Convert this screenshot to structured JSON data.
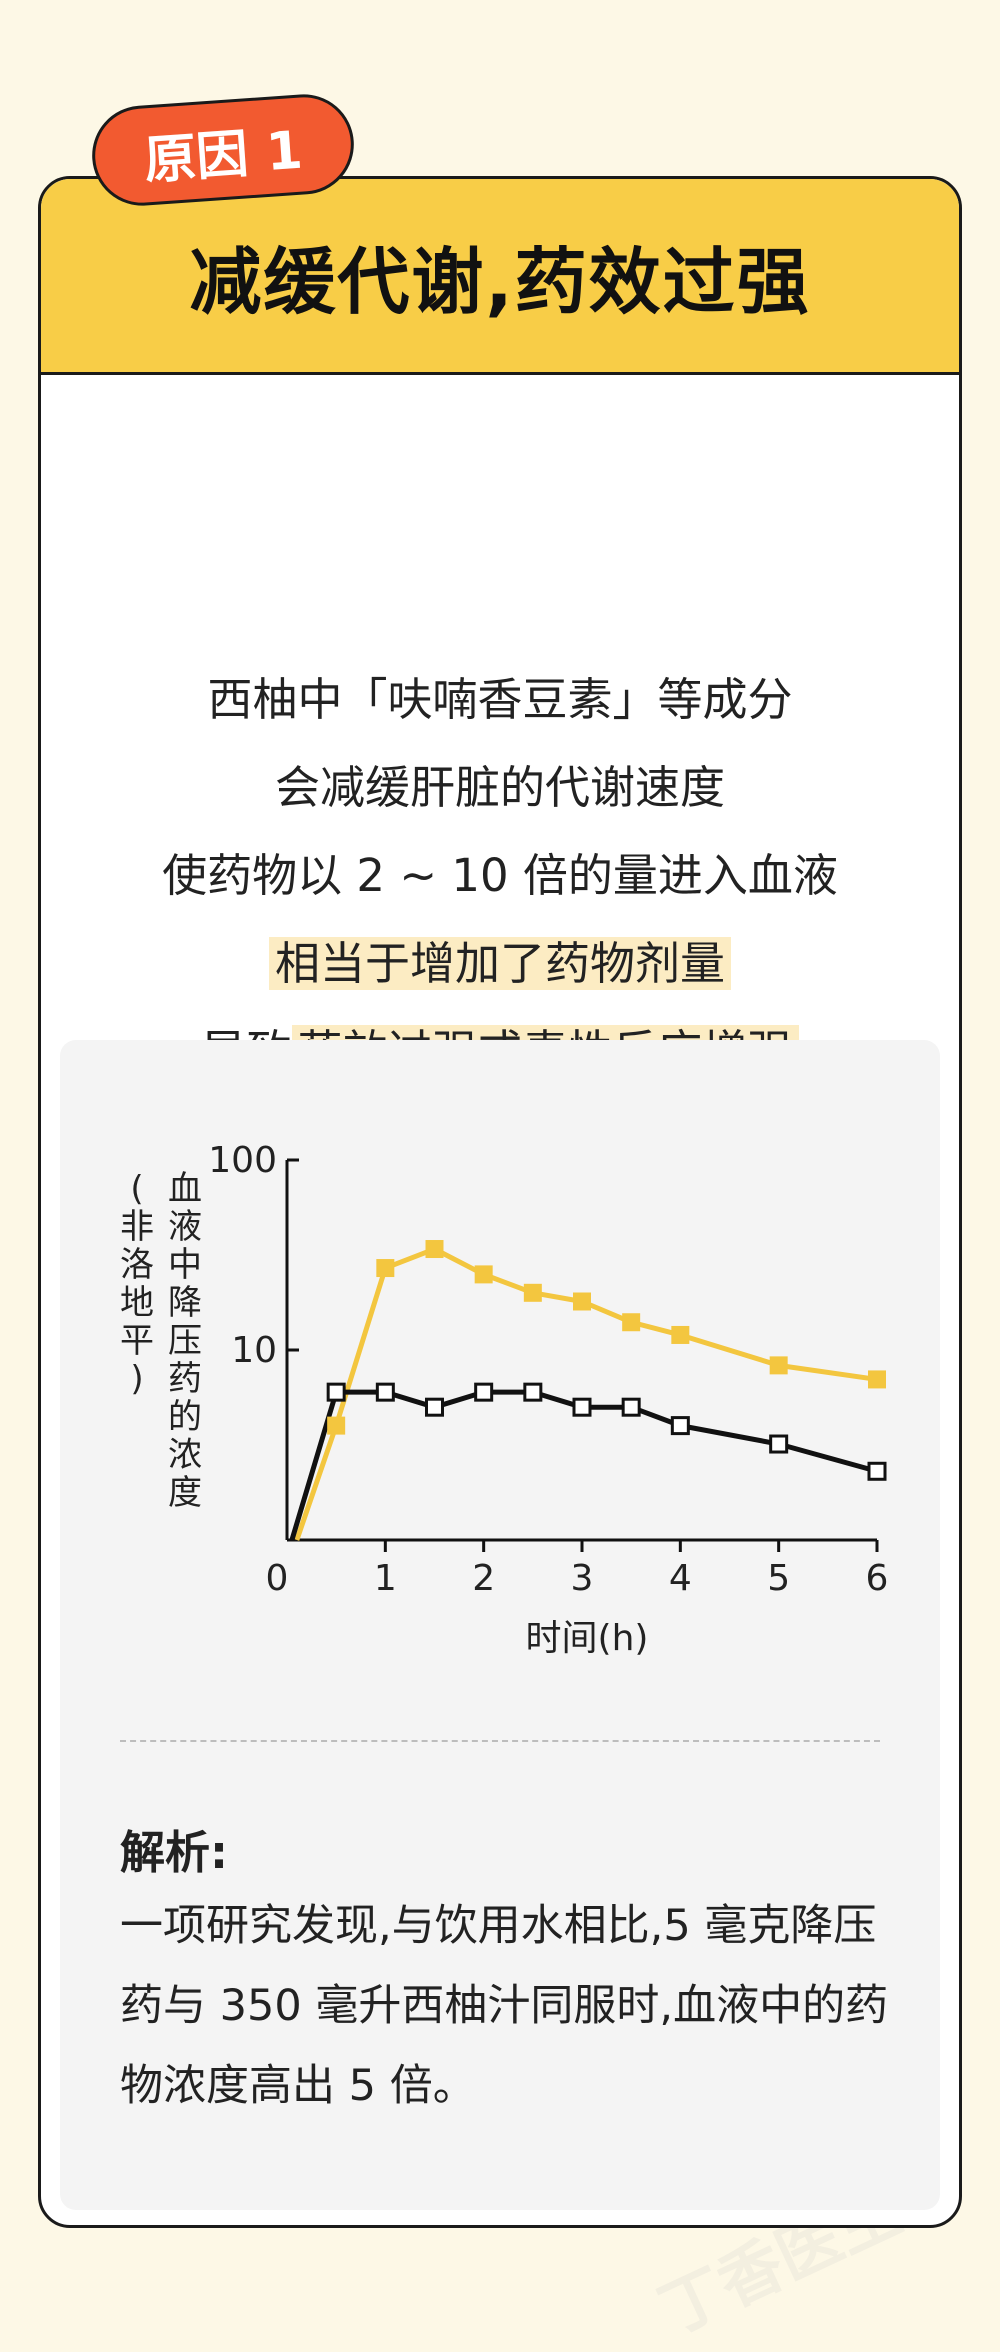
{
  "tag": {
    "label": "原因 1"
  },
  "header": {
    "title": "减缓代谢,药效过强"
  },
  "watermark": "丁香医生",
  "body_lines": {
    "line1": "西柚中「呋喃香豆素」等成分",
    "line2": "会减缓肝脏的代谢速度",
    "line3": "使药物以 2 ~ 10 倍的量进入血液",
    "line4": "相当于增加了药物剂量",
    "line5_prefix": "导致",
    "line5_highlight": "药效过强或毒性反应增强"
  },
  "chart_data": {
    "type": "line",
    "yscale": "log",
    "ylabel_main": "血液中降压药的浓度",
    "ylabel_sub": "(非洛地平)",
    "xlabel": "时间(h)",
    "x_ticks": [
      "0",
      "1",
      "2",
      "3",
      "4",
      "5",
      "6"
    ],
    "y_ticks": [
      "100",
      "10"
    ],
    "xlim": [
      0,
      6
    ],
    "ylim": [
      1,
      100
    ],
    "series": [
      {
        "color": "#f3c63f",
        "marker": "filled-square",
        "x": [
          0.1,
          0.5,
          1,
          1.5,
          2,
          2.5,
          3,
          3.5,
          4,
          5,
          6
        ],
        "y": [
          1,
          4,
          27,
          34,
          25,
          20,
          18,
          14,
          12,
          8.3,
          7
        ]
      },
      {
        "color": "#111111",
        "marker": "open-square",
        "x": [
          0.05,
          0.5,
          1,
          1.5,
          2,
          2.5,
          3,
          3.5,
          4,
          5,
          6
        ],
        "y": [
          1,
          6,
          6,
          5,
          6,
          6,
          5,
          5,
          4,
          3.2,
          2.3
        ]
      }
    ]
  },
  "analysis": {
    "title": "解析:",
    "text": "一项研究发现,与饮用水相比,5 毫克降压药与 350 毫升西柚汁同服时,血液中的药物浓度高出 5 倍。"
  },
  "colors": {
    "accent": "#f8cd47",
    "tag": "#f25a30",
    "background": "#fdf8e6"
  }
}
